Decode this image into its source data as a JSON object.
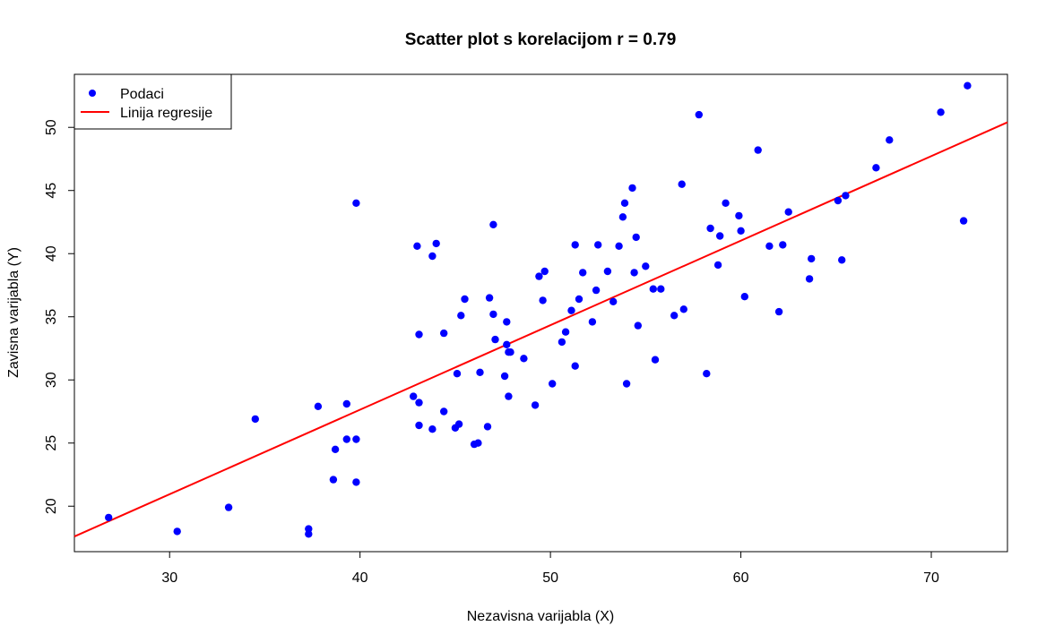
{
  "chart_data": {
    "type": "scatter",
    "title": "Scatter plot s korelacijom r = 0.79",
    "xlabel": "Nezavisna varijabla (X)",
    "ylabel": "Zavisna varijabla (Y)",
    "xlim": [
      25,
      74
    ],
    "ylim": [
      16.4,
      54.2
    ],
    "xticks": [
      30,
      40,
      50,
      60,
      70
    ],
    "yticks": [
      20,
      25,
      30,
      35,
      40,
      45,
      50
    ],
    "legend_position": "top-left",
    "legend": [
      {
        "label": "Podaci",
        "kind": "point",
        "color": "#0000ff"
      },
      {
        "label": "Linija regresije",
        "kind": "line",
        "color": "#ff0000"
      }
    ],
    "series": [
      {
        "name": "Podaci",
        "color": "#0000ff",
        "points": [
          [
            26.8,
            19.1
          ],
          [
            30.4,
            18.0
          ],
          [
            33.1,
            19.9
          ],
          [
            34.5,
            26.9
          ],
          [
            37.3,
            17.8
          ],
          [
            37.3,
            18.2
          ],
          [
            37.8,
            27.9
          ],
          [
            38.6,
            22.1
          ],
          [
            38.7,
            24.5
          ],
          [
            39.3,
            25.3
          ],
          [
            39.3,
            28.1
          ],
          [
            39.8,
            25.3
          ],
          [
            39.8,
            21.9
          ],
          [
            39.8,
            44.0
          ],
          [
            42.8,
            28.7
          ],
          [
            43.0,
            40.6
          ],
          [
            43.1,
            33.6
          ],
          [
            43.1,
            28.2
          ],
          [
            43.1,
            26.4
          ],
          [
            43.8,
            26.1
          ],
          [
            43.8,
            39.8
          ],
          [
            44.0,
            40.8
          ],
          [
            44.4,
            27.5
          ],
          [
            44.4,
            33.7
          ],
          [
            45.0,
            26.2
          ],
          [
            45.1,
            30.5
          ],
          [
            45.2,
            26.5
          ],
          [
            45.3,
            35.1
          ],
          [
            45.5,
            36.4
          ],
          [
            46.0,
            24.9
          ],
          [
            46.2,
            25.0
          ],
          [
            46.3,
            30.6
          ],
          [
            46.7,
            26.3
          ],
          [
            46.8,
            36.5
          ],
          [
            47.0,
            42.3
          ],
          [
            47.0,
            35.2
          ],
          [
            47.1,
            33.2
          ],
          [
            47.6,
            30.3
          ],
          [
            47.7,
            34.6
          ],
          [
            47.7,
            32.8
          ],
          [
            47.8,
            28.7
          ],
          [
            47.8,
            32.2
          ],
          [
            47.9,
            32.2
          ],
          [
            48.6,
            31.7
          ],
          [
            49.2,
            28.0
          ],
          [
            49.4,
            38.2
          ],
          [
            49.6,
            36.3
          ],
          [
            49.7,
            38.6
          ],
          [
            50.1,
            29.7
          ],
          [
            50.6,
            33.0
          ],
          [
            50.8,
            33.8
          ],
          [
            51.1,
            35.5
          ],
          [
            51.3,
            40.7
          ],
          [
            51.3,
            31.1
          ],
          [
            51.5,
            36.4
          ],
          [
            51.7,
            38.5
          ],
          [
            52.2,
            34.6
          ],
          [
            52.4,
            37.1
          ],
          [
            52.5,
            40.7
          ],
          [
            53.0,
            38.6
          ],
          [
            53.3,
            36.2
          ],
          [
            53.6,
            40.6
          ],
          [
            53.8,
            42.9
          ],
          [
            53.9,
            44.0
          ],
          [
            54.0,
            29.7
          ],
          [
            54.3,
            45.2
          ],
          [
            54.4,
            38.5
          ],
          [
            54.5,
            41.3
          ],
          [
            54.6,
            34.3
          ],
          [
            55.0,
            39.0
          ],
          [
            55.4,
            37.2
          ],
          [
            55.5,
            31.6
          ],
          [
            55.8,
            37.2
          ],
          [
            56.5,
            35.1
          ],
          [
            56.9,
            45.5
          ],
          [
            57.0,
            35.6
          ],
          [
            57.8,
            51.0
          ],
          [
            58.2,
            30.5
          ],
          [
            58.4,
            42.0
          ],
          [
            58.8,
            39.1
          ],
          [
            58.9,
            41.4
          ],
          [
            59.2,
            44.0
          ],
          [
            59.9,
            43.0
          ],
          [
            60.0,
            41.8
          ],
          [
            60.2,
            36.6
          ],
          [
            60.9,
            48.2
          ],
          [
            61.5,
            40.6
          ],
          [
            62.0,
            35.4
          ],
          [
            62.2,
            40.7
          ],
          [
            62.5,
            43.3
          ],
          [
            63.6,
            38.0
          ],
          [
            63.7,
            39.6
          ],
          [
            65.1,
            44.2
          ],
          [
            65.3,
            39.5
          ],
          [
            65.5,
            44.6
          ],
          [
            67.1,
            46.8
          ],
          [
            67.8,
            49.0
          ],
          [
            70.5,
            51.2
          ],
          [
            71.7,
            42.6
          ],
          [
            71.9,
            53.3
          ]
        ]
      }
    ],
    "regression_line": {
      "name": "Linija regresije",
      "color": "#ff0000",
      "x": [
        25,
        74
      ],
      "y": [
        17.6,
        50.4
      ]
    }
  }
}
